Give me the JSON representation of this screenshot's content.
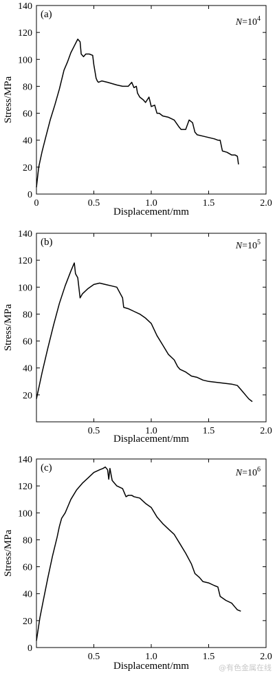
{
  "watermark": "@有色金属在线",
  "chart_data": [
    {
      "type": "line",
      "panel_label": "(a)",
      "annotation": {
        "var": "N",
        "eq": "=10",
        "exp": "4"
      },
      "xlabel": "Displacement/mm",
      "ylabel": "Stress/MPa",
      "xlim": [
        0,
        2.0
      ],
      "ylim": [
        0,
        140
      ],
      "xticks": [
        "0",
        "0.5",
        "1.0",
        "1.5",
        "2.0"
      ],
      "yticks": [
        "20",
        "40",
        "60",
        "80",
        "100",
        "120",
        "140"
      ],
      "series": [
        {
          "x": [
            0.0,
            0.02,
            0.05,
            0.08,
            0.12,
            0.16,
            0.2,
            0.24,
            0.27,
            0.3,
            0.33,
            0.36,
            0.38,
            0.39,
            0.41,
            0.43,
            0.46,
            0.49,
            0.5,
            0.52,
            0.53,
            0.54,
            0.57,
            0.62,
            0.7,
            0.75,
            0.8,
            0.83,
            0.85,
            0.87,
            0.88,
            0.9,
            0.93,
            0.95,
            0.98,
            1.0,
            1.03,
            1.05,
            1.07,
            1.1,
            1.15,
            1.2,
            1.24,
            1.26,
            1.3,
            1.33,
            1.36,
            1.38,
            1.4,
            1.45,
            1.5,
            1.55,
            1.58,
            1.6,
            1.62,
            1.66,
            1.7,
            1.73,
            1.75,
            1.76
          ],
          "y": [
            5,
            20,
            32,
            42,
            55,
            66,
            78,
            92,
            98,
            105,
            110,
            115,
            113,
            104,
            102,
            104,
            104,
            103,
            96,
            86,
            84,
            83,
            84,
            83,
            81,
            80,
            80,
            83,
            79,
            80,
            75,
            72,
            70,
            68,
            72,
            65,
            66,
            60,
            60,
            58,
            57,
            55,
            50,
            48,
            48,
            55,
            53,
            46,
            44,
            43,
            42,
            41,
            40,
            40,
            32,
            31,
            29,
            29,
            28,
            22
          ]
        }
      ]
    },
    {
      "type": "line",
      "panel_label": "(b)",
      "annotation": {
        "var": "N",
        "eq": "=10",
        "exp": "5"
      },
      "xlabel": "Displacement/mm",
      "ylabel": "Stress/MPa",
      "xlim": [
        0,
        2.0
      ],
      "ylim": [
        0,
        140
      ],
      "xticks": [
        "0.5",
        "1.0",
        "1.5",
        "2.0"
      ],
      "yticks": [
        "20",
        "40",
        "60",
        "80",
        "100",
        "120",
        "140"
      ],
      "series": [
        {
          "x": [
            0.0,
            0.05,
            0.1,
            0.15,
            0.2,
            0.25,
            0.3,
            0.33,
            0.34,
            0.36,
            0.38,
            0.4,
            0.45,
            0.5,
            0.55,
            0.6,
            0.65,
            0.7,
            0.75,
            0.76,
            0.8,
            0.85,
            0.9,
            0.95,
            1.0,
            1.05,
            1.1,
            1.15,
            1.2,
            1.23,
            1.25,
            1.3,
            1.35,
            1.4,
            1.45,
            1.5,
            1.6,
            1.7,
            1.75,
            1.78,
            1.8,
            1.83,
            1.85,
            1.88
          ],
          "y": [
            17,
            37,
            55,
            72,
            88,
            101,
            112,
            118,
            110,
            107,
            92,
            95,
            99,
            102,
            103,
            102,
            101,
            100,
            92,
            85,
            84,
            82,
            80,
            77,
            73,
            64,
            57,
            50,
            46,
            41,
            39,
            37,
            34,
            33,
            31,
            30,
            29,
            28,
            27,
            24,
            22,
            19,
            17,
            15
          ]
        }
      ]
    },
    {
      "type": "line",
      "panel_label": "(c)",
      "annotation": {
        "var": "N",
        "eq": "=10",
        "exp": "6"
      },
      "xlabel": "Displacement/mm",
      "ylabel": "Stress/MPa",
      "xlim": [
        0,
        2.0
      ],
      "ylim": [
        0,
        140
      ],
      "xticks": [
        "0.5",
        "1.0",
        "1.5",
        "2.0"
      ],
      "yticks": [
        "20",
        "40",
        "60",
        "80",
        "100",
        "120",
        "140"
      ],
      "series": [
        {
          "x": [
            0.0,
            0.03,
            0.06,
            0.1,
            0.14,
            0.18,
            0.2,
            0.22,
            0.25,
            0.28,
            0.3,
            0.35,
            0.4,
            0.45,
            0.5,
            0.55,
            0.58,
            0.6,
            0.62,
            0.63,
            0.64,
            0.66,
            0.7,
            0.75,
            0.78,
            0.8,
            0.83,
            0.85,
            0.9,
            0.95,
            1.0,
            1.05,
            1.1,
            1.15,
            1.2,
            1.25,
            1.3,
            1.35,
            1.38,
            1.42,
            1.45,
            1.5,
            1.55,
            1.58,
            1.6,
            1.65,
            1.7,
            1.73,
            1.75,
            1.78
          ],
          "y": [
            5,
            22,
            35,
            52,
            68,
            82,
            90,
            96,
            100,
            106,
            110,
            117,
            122,
            126,
            130,
            132,
            133,
            134,
            132,
            125,
            133,
            124,
            120,
            118,
            112,
            113,
            113,
            112,
            111,
            107,
            104,
            97,
            92,
            88,
            84,
            77,
            70,
            62,
            55,
            52,
            49,
            48,
            46,
            45,
            38,
            35,
            33,
            30,
            28,
            27
          ]
        }
      ]
    }
  ]
}
